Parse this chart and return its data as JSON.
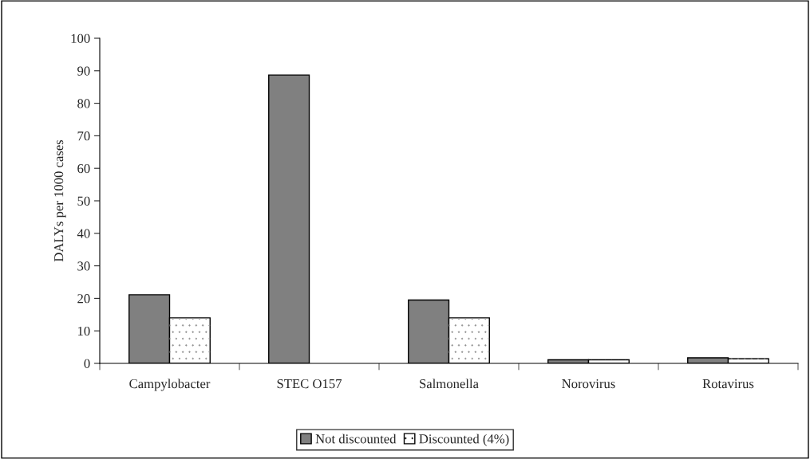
{
  "chart_data": {
    "type": "bar",
    "ylabel": "DALYs per 1000 cases",
    "categories": [
      "Campylobacter",
      "STEC O157",
      "Salmonella",
      "Norovirus",
      "Rotavirus"
    ],
    "series": [
      {
        "name": "Not discounted",
        "color": "#808080",
        "values": [
          21.1,
          88.7,
          19.5,
          1.1,
          1.7
        ]
      },
      {
        "name": "Discounted (4%)",
        "color": "#ffffff",
        "values": [
          14,
          null,
          14,
          1.1,
          1.4
        ]
      }
    ],
    "ylim": [
      0,
      100
    ],
    "yticks": [
      0,
      10,
      20,
      30,
      40,
      50,
      60,
      70,
      80,
      90,
      100
    ],
    "grid": false,
    "legend": "bottom"
  }
}
